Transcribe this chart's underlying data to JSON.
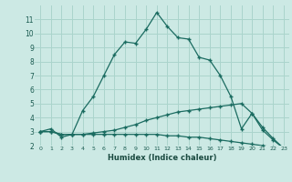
{
  "xlabel": "Humidex (Indice chaleur)",
  "bg_color": "#cce9e4",
  "grid_color": "#aad4cc",
  "line_color": "#1a6b60",
  "xlim": [
    -0.5,
    23.5
  ],
  "ylim": [
    2,
    12
  ],
  "xticks": [
    0,
    1,
    2,
    3,
    4,
    5,
    6,
    7,
    8,
    9,
    10,
    11,
    12,
    13,
    14,
    15,
    16,
    17,
    18,
    19,
    20,
    21,
    22,
    23
  ],
  "yticks": [
    2,
    3,
    4,
    5,
    6,
    7,
    8,
    9,
    10,
    11
  ],
  "series": [
    {
      "x": [
        0,
        1,
        2,
        3,
        4,
        5,
        6,
        7,
        8,
        9,
        10,
        11,
        12,
        13,
        14,
        15,
        16,
        17,
        18,
        19,
        20,
        21,
        22,
        23
      ],
      "y": [
        3.0,
        3.2,
        2.6,
        2.8,
        4.5,
        5.5,
        7.0,
        8.5,
        9.4,
        9.3,
        10.3,
        11.5,
        10.5,
        9.7,
        9.6,
        8.3,
        8.1,
        7.0,
        5.5,
        3.2,
        4.3,
        3.1,
        2.4,
        1.8
      ]
    },
    {
      "x": [
        0,
        1,
        2,
        3,
        4,
        5,
        6,
        7,
        8,
        9,
        10,
        11,
        12,
        13,
        14,
        15,
        16,
        17,
        18,
        19,
        20,
        21,
        22,
        23
      ],
      "y": [
        3.0,
        3.0,
        2.8,
        2.8,
        2.8,
        2.9,
        3.0,
        3.1,
        3.3,
        3.5,
        3.8,
        4.0,
        4.2,
        4.4,
        4.5,
        4.6,
        4.7,
        4.8,
        4.9,
        5.0,
        4.3,
        3.3,
        2.5,
        1.8
      ]
    },
    {
      "x": [
        0,
        1,
        2,
        3,
        4,
        5,
        6,
        7,
        8,
        9,
        10,
        11,
        12,
        13,
        14,
        15,
        16,
        17,
        18,
        19,
        20,
        21,
        22,
        23
      ],
      "y": [
        3.0,
        3.0,
        2.8,
        2.8,
        2.8,
        2.8,
        2.8,
        2.8,
        2.8,
        2.8,
        2.8,
        2.8,
        2.7,
        2.7,
        2.6,
        2.6,
        2.5,
        2.4,
        2.3,
        2.2,
        2.1,
        2.0,
        1.9,
        1.8
      ]
    }
  ]
}
